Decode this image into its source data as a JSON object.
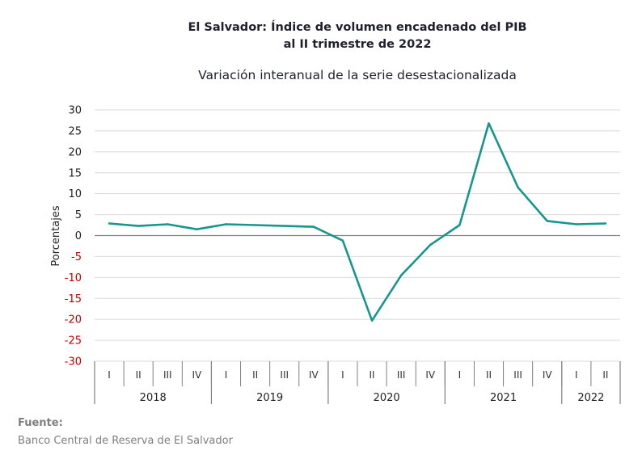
{
  "header": {
    "title_line1": "El Salvador: Índice de volumen encadenado del PIB",
    "title_line2": "al II trimestre de 2022",
    "subtitle": "Variación interanual de la serie desestacionalizada"
  },
  "footer": {
    "source_label": "Fuente:",
    "source_text": "Banco Central de Reserva de El Salvador"
  },
  "colors": {
    "line": "#17968f",
    "negative_tick": "#c00000",
    "positive_tick": "#222222",
    "grid": "#d9d9d9",
    "axis": "#7f7f7f"
  },
  "chart_data": {
    "type": "line",
    "title": "El Salvador: Índice de volumen encadenado del PIB al II trimestre de 2022",
    "subtitle": "Variación interanual de la serie desestacionalizada",
    "ylabel": "Porcentajes",
    "xlabel": "",
    "ylim": [
      -30,
      30
    ],
    "yticks": [
      30,
      25,
      20,
      15,
      10,
      5,
      0,
      -5,
      -10,
      -15,
      -20,
      -25,
      -30
    ],
    "grid": true,
    "categories": [
      "I",
      "II",
      "III",
      "IV",
      "I",
      "II",
      "III",
      "IV",
      "I",
      "II",
      "III",
      "IV",
      "I",
      "II",
      "III",
      "IV",
      "I",
      "II"
    ],
    "years": [
      {
        "label": "2018",
        "quarters": 4
      },
      {
        "label": "2019",
        "quarters": 4
      },
      {
        "label": "2020",
        "quarters": 4
      },
      {
        "label": "2021",
        "quarters": 4
      },
      {
        "label": "2022",
        "quarters": 2
      }
    ],
    "series": [
      {
        "values": [
          2.9,
          2.3,
          2.7,
          1.5,
          2.7,
          2.5,
          2.3,
          2.1,
          -1.2,
          -20.3,
          -9.5,
          -2.2,
          2.5,
          26.8,
          11.5,
          3.5,
          2.7,
          2.9
        ]
      }
    ]
  }
}
